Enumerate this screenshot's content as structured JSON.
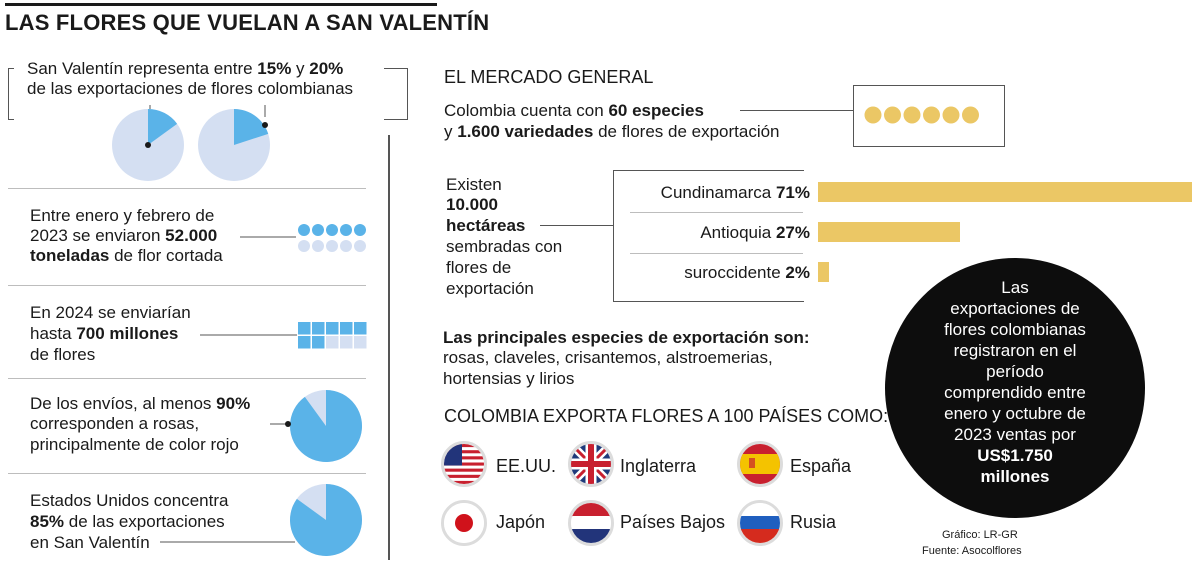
{
  "title": "LAS FLORES QUE VUELAN A SAN VALENTÍN",
  "intro": {
    "a": "San Valentín representa entre ",
    "b1": "15%",
    "c": " y ",
    "b2": "20%",
    "d": "de las exportaciones de flores colombianas",
    "pie_pct": [
      15,
      20
    ]
  },
  "fact1": {
    "l1": "Entre enero y febrero de",
    "l2a": "2023 se enviaron ",
    "l2b": "52.000",
    "l3a": "toneladas",
    "l3b": " de flor cortada",
    "dots_top": 5,
    "dots_bottom": 5
  },
  "fact2": {
    "l1": "En 2024 se enviarían",
    "l2a": "hasta ",
    "l2b": "700 millones",
    "l3": "de flores",
    "squares_filled": 7,
    "squares_total": 10
  },
  "fact3": {
    "l1a": "De los envíos, al menos ",
    "l1b": "90%",
    "l2": "corresponden a rosas,",
    "l3": "principalmente de color rojo",
    "pie_pct": 90
  },
  "fact4": {
    "l1": "Estados Unidos concentra",
    "l2a": "85%",
    "l2b": " de las exportaciones",
    "l3": "en San Valentín",
    "pie_pct": 85
  },
  "market": {
    "heading": "EL MERCADO GENERAL",
    "l1a": "Colombia cuenta con ",
    "l1b": "60 especies",
    "l2a": "y ",
    "l2b": "1.600 variedades",
    "l2c": " de flores de exportación",
    "dots": 6
  },
  "hectares": {
    "l1": "Existen",
    "l2": "10.000",
    "l3": "hectáreas",
    "l4": "sembradas con",
    "l5": "flores de",
    "l6": "exportación"
  },
  "chart_data": {
    "type": "bar",
    "categories": [
      "Cundinamarca",
      "Antioquia",
      "suroccidente"
    ],
    "values": [
      71,
      27,
      2
    ],
    "value_labels": [
      "71%",
      "27%",
      "2%"
    ],
    "title": "",
    "xlabel": "",
    "ylabel": "",
    "xlim": [
      0,
      71
    ]
  },
  "species": {
    "heading": "Las principales especies de exportación son:",
    "l1": "rosas, claveles, crisantemos, alstroemerias,",
    "l2": "hortensias y lirios"
  },
  "countries": {
    "heading": "COLOMBIA EXPORTA FLORES A 100 PAÍSES COMO:",
    "list": [
      "EE.UU.",
      "Inglaterra",
      "España",
      "Japón",
      "Países Bajos",
      "Rusia"
    ]
  },
  "circle": {
    "lines": [
      "Las",
      "exportaciones de",
      "flores colombianas",
      "registraron en el",
      "período",
      "comprendido entre",
      "enero y octubre de",
      "2023 ventas por"
    ],
    "bold1": "US$1.750",
    "bold2": "millones"
  },
  "credits": {
    "grafico": "Gráfico: LR-GR",
    "fuente": "Fuente: Asocolflores"
  },
  "colors": {
    "blue": "#5ab3e8",
    "light_blue": "#d4dff2",
    "gold": "#ebc765",
    "black": "#0d0d0d"
  }
}
